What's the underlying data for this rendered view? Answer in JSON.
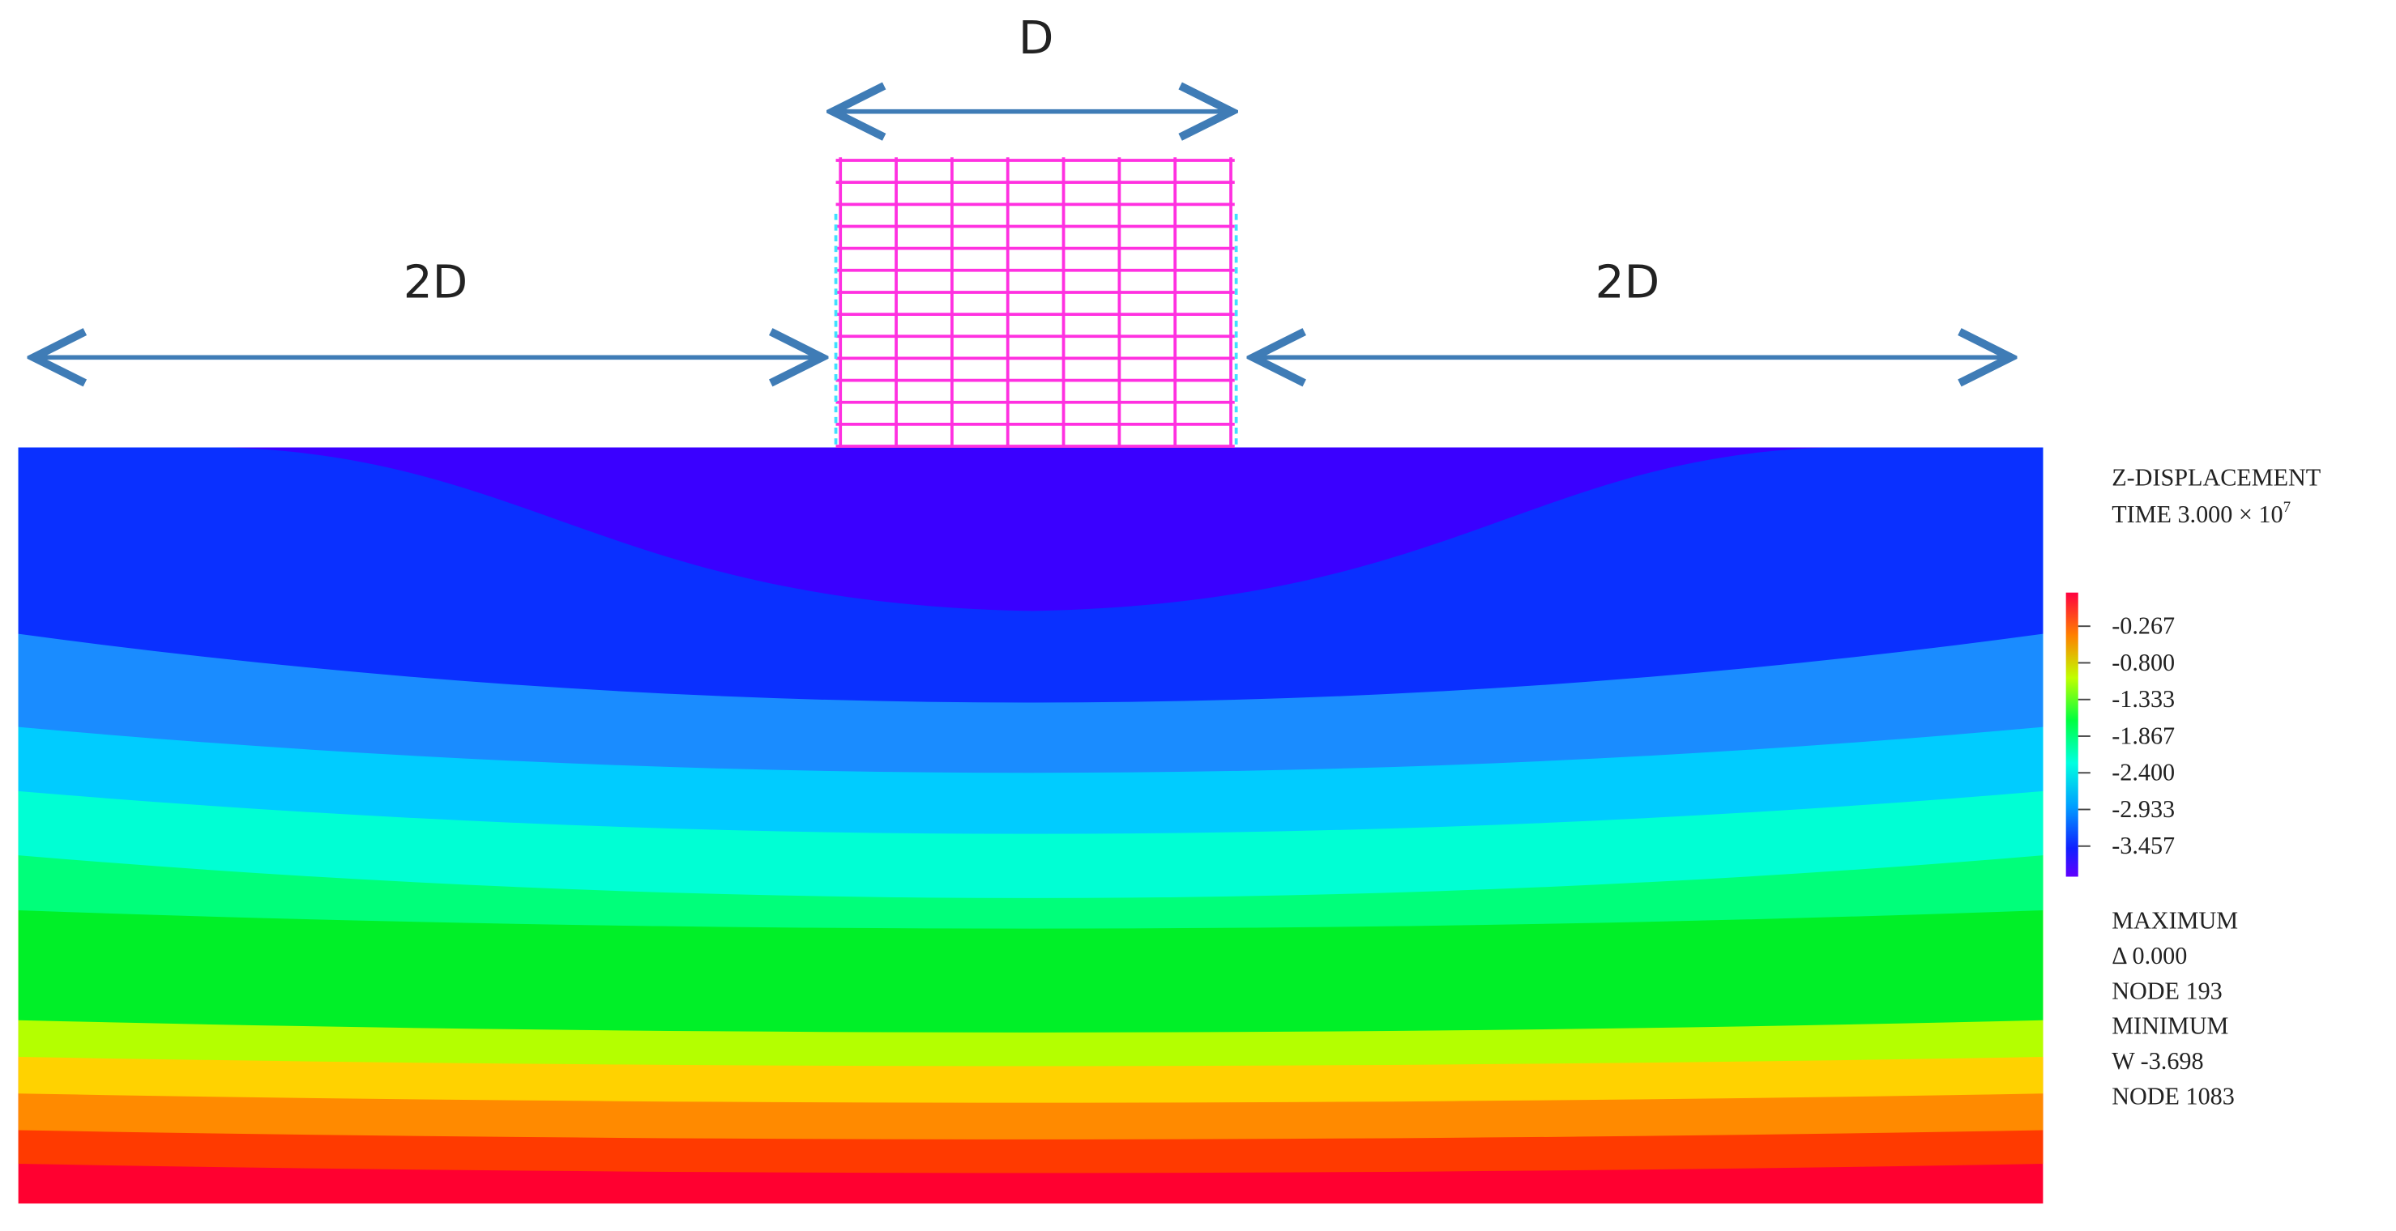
{
  "dimensions": {
    "top": "D",
    "left": "2D",
    "right": "2D"
  },
  "legend": {
    "title": "Z-DISPLACEMENT",
    "time": "TIME 3.000 × 10",
    "time_exponent": "7",
    "levels": [
      "-0.267",
      "-0.800",
      "-1.333",
      "-1.867",
      "-2.400",
      "-2.933",
      "-3.457"
    ],
    "maximum": {
      "heading": "MAXIMUM",
      "value": "Δ 0.000",
      "node": "NODE 193"
    },
    "minimum": {
      "heading": "MINIMUM",
      "value": "W  -3.698",
      "node": "NODE 1083"
    }
  }
}
